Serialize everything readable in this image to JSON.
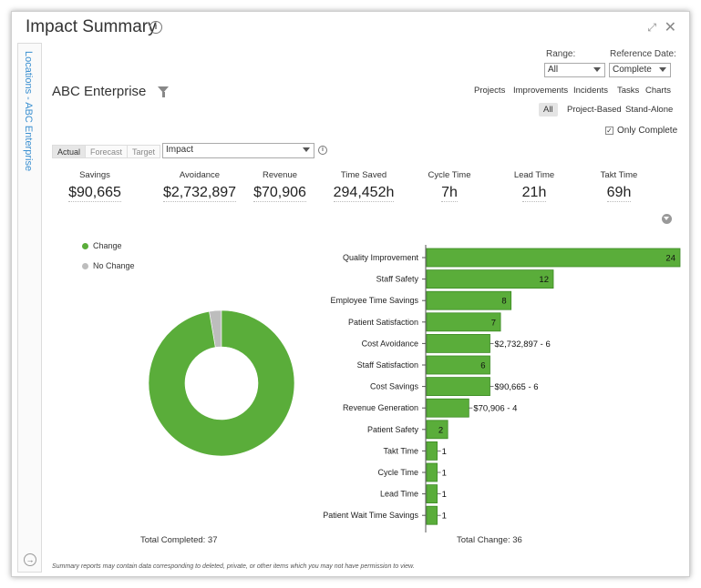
{
  "window": {
    "title": "Impact Summary"
  },
  "sidebar": {
    "label": "Locations - ABC Enterprise"
  },
  "filters": {
    "range_label": "Range:",
    "range_value": "All",
    "reference_label": "Reference Date:",
    "reference_value": "Complete"
  },
  "entity_title": "ABC Enterprise",
  "nav": [
    "Projects",
    "Improvements",
    "Incidents",
    "Tasks",
    "Charts"
  ],
  "scope": [
    "All",
    "Project-Based",
    "Stand-Alone"
  ],
  "only_complete": "Only Complete",
  "tabs": [
    "Actual",
    "Forecast",
    "Target"
  ],
  "impact_select": "Impact",
  "metrics": [
    {
      "label": "Savings",
      "value": "$90,665"
    },
    {
      "label": "Avoidance",
      "value": "$2,732,897"
    },
    {
      "label": "Revenue",
      "value": "$70,906"
    },
    {
      "label": "Time Saved",
      "value": "294,452h"
    },
    {
      "label": "Cycle Time",
      "value": "7h"
    },
    {
      "label": "Lead Time",
      "value": "21h"
    },
    {
      "label": "Takt Time",
      "value": "69h"
    }
  ],
  "legend": [
    {
      "label": "Change",
      "color": "#5aad3a"
    },
    {
      "label": "No Change",
      "color": "#bdbdbd"
    }
  ],
  "chart_data": [
    {
      "type": "pie",
      "labels": [
        "Change",
        "No Change"
      ],
      "values": [
        36,
        1
      ],
      "colors": [
        "#5aad3a",
        "#bdbdbd"
      ]
    },
    {
      "type": "bar",
      "orientation": "horizontal",
      "categories": [
        "Quality Improvement",
        "Staff Safety",
        "Employee Time Savings",
        "Patient Satisfaction",
        "Cost Avoidance",
        "Staff Satisfaction",
        "Cost Savings",
        "Revenue Generation",
        "Patient Safety",
        "Takt Time",
        "Cycle Time",
        "Lead Time",
        "Patient Wait Time Savings"
      ],
      "values": [
        24,
        12,
        8,
        7,
        6,
        6,
        6,
        4,
        2,
        1,
        1,
        1,
        1
      ],
      "labels": [
        "24",
        "12",
        "8",
        "7",
        "$2,732,897 - 6",
        "6",
        "$90,665 - 6",
        "$70,906 - 4",
        "2",
        "1",
        "1",
        "1",
        "1"
      ],
      "color": "#5aad3a"
    }
  ],
  "totals": {
    "completed": "Total Completed: 37",
    "change": "Total Change: 36"
  },
  "disclaimer": "Summary reports may contain data corresponding to deleted, private, or other items which you may not have permission to view."
}
